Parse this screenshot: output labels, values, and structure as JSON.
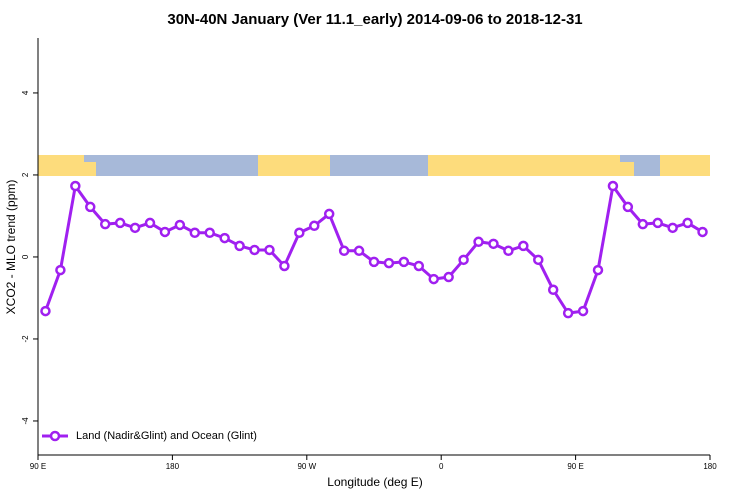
{
  "chart_data": {
    "type": "line",
    "title": "30N-40N January (Ver 11.1_early)   2014-09-06 to 2018-12-31",
    "x_label": "Longitude (deg E)",
    "y_label": "XCO2 - MLO trend (ppm)",
    "xlim": [
      90,
      540
    ],
    "ylim": [
      -4.83,
      5.34
    ],
    "xticks": [
      {
        "value": 90,
        "label": "90 E"
      },
      180,
      {
        "value": 270,
        "label": "90 W"
      },
      {
        "value": 360,
        "label": "0"
      },
      {
        "value": 450,
        "label": "90 E"
      },
      {
        "value": 540,
        "label": "180"
      }
    ],
    "yticks": [
      -4,
      -2,
      0,
      2,
      4
    ],
    "x": [
      95,
      105,
      115,
      125,
      135,
      145,
      155,
      165,
      175,
      185,
      195,
      205,
      215,
      225,
      235,
      245,
      255,
      265,
      275,
      285,
      295,
      305,
      315,
      325,
      335,
      345,
      355,
      365,
      375,
      385,
      395,
      405,
      415,
      425,
      435,
      445,
      455,
      465,
      475,
      485,
      495,
      505,
      515,
      525,
      535
    ],
    "series": [
      {
        "name": "Land (Nadir&Glint) and Ocean (Glint)",
        "color": "#a020f0",
        "values": [
          -1.32,
          -0.32,
          1.73,
          1.22,
          0.8,
          0.83,
          0.71,
          0.83,
          0.61,
          0.78,
          0.59,
          0.59,
          0.46,
          0.27,
          0.17,
          0.17,
          -0.22,
          0.59,
          0.76,
          1.05,
          0.15,
          0.15,
          -0.12,
          -0.15,
          -0.12,
          -0.22,
          -0.54,
          -0.49,
          -0.07,
          0.37,
          0.32,
          0.15,
          0.27,
          -0.07,
          -0.8,
          -1.37,
          -1.32,
          -0.32,
          1.73,
          1.22,
          0.8,
          0.83,
          0.71,
          0.83,
          0.61
        ]
      }
    ],
    "legend": "bottom-left"
  }
}
